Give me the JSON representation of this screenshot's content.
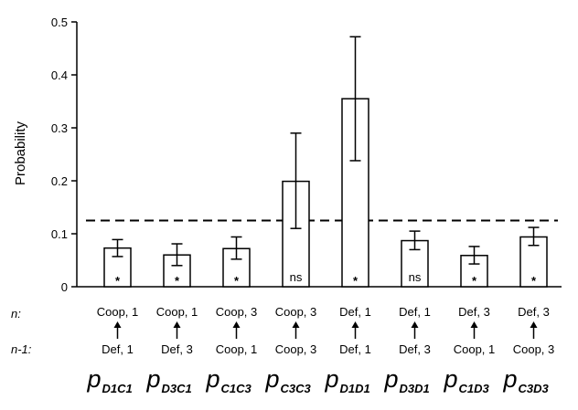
{
  "chart_data": {
    "type": "bar",
    "ylabel": "Probability",
    "ylim": [
      0,
      0.5
    ],
    "yticks": [
      "0",
      "0.1",
      "0.2",
      "0.3",
      "0.4",
      "0.5"
    ],
    "reference_line": 0.125,
    "row_labels": {
      "n": "n:",
      "n_minus_1": "n-1:"
    },
    "categories": [
      {
        "n": "Coop, 1",
        "prev": "Def, 1",
        "p": "p",
        "sub": "D1C1",
        "value": 0.073,
        "err_low": 0.057,
        "err_high": 0.089,
        "mark": "*"
      },
      {
        "n": "Coop, 1",
        "prev": "Def, 3",
        "p": "p",
        "sub": "D3C1",
        "value": 0.06,
        "err_low": 0.04,
        "err_high": 0.081,
        "mark": "*"
      },
      {
        "n": "Coop, 3",
        "prev": "Coop, 1",
        "p": "p",
        "sub": "C1C3",
        "value": 0.072,
        "err_low": 0.052,
        "err_high": 0.094,
        "mark": "*"
      },
      {
        "n": "Coop, 3",
        "prev": "Coop, 3",
        "p": "p",
        "sub": "C3C3",
        "value": 0.199,
        "err_low": 0.11,
        "err_high": 0.29,
        "mark": "ns"
      },
      {
        "n": "Def, 1",
        "prev": "Def, 1",
        "p": "p",
        "sub": "D1D1",
        "value": 0.355,
        "err_low": 0.238,
        "err_high": 0.472,
        "mark": "*"
      },
      {
        "n": "Def, 1",
        "prev": "Def, 3",
        "p": "p",
        "sub": "D3D1",
        "value": 0.087,
        "err_low": 0.07,
        "err_high": 0.105,
        "mark": "ns"
      },
      {
        "n": "Def, 3",
        "prev": "Coop, 1",
        "p": "p",
        "sub": "C1D3",
        "value": 0.059,
        "err_low": 0.043,
        "err_high": 0.076,
        "mark": "*"
      },
      {
        "n": "Def, 3",
        "prev": "Coop, 3",
        "p": "p",
        "sub": "C3D3",
        "value": 0.094,
        "err_low": 0.078,
        "err_high": 0.112,
        "mark": "*"
      }
    ]
  }
}
